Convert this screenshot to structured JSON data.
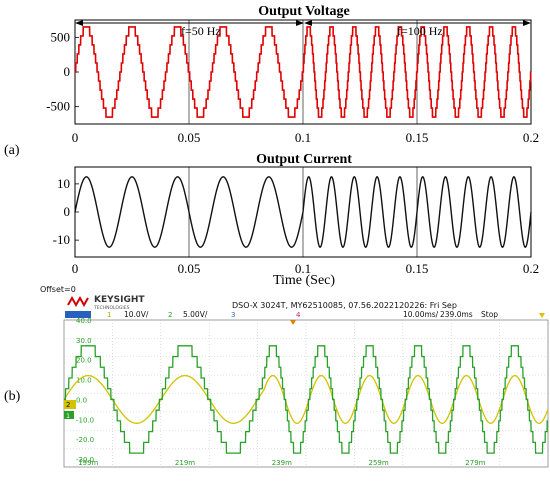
{
  "panel_labels": {
    "a": "(a)",
    "b": "(b)"
  },
  "chart_data": [
    {
      "type": "line",
      "title": "Output Voltage",
      "annotations": [
        "f=50 Hz",
        "f=100 Hz"
      ],
      "xlim": [
        0,
        0.2
      ],
      "ylim": [
        -750,
        750
      ],
      "x_ticks": [
        "0",
        "0.05",
        "0.1",
        "0.15",
        "0.2"
      ],
      "y_ticks": [
        "500",
        "0",
        "-500"
      ],
      "y_tick_values": [
        500,
        0,
        -500
      ],
      "x_tick_values": [
        0,
        0.05,
        0.1,
        0.15,
        0.2
      ],
      "grid": "vertical",
      "series": [
        {
          "color": "#e00000",
          "waveform": "stepped-sine",
          "segments": [
            {
              "x_start": 0,
              "x_end": 0.1,
              "frequency_hz": 50,
              "amplitude": 650
            },
            {
              "x_start": 0.1,
              "x_end": 0.2,
              "frequency_hz": 100,
              "amplitude": 650
            }
          ]
        }
      ]
    },
    {
      "type": "line",
      "title": "Output Current",
      "xlabel": "Time (Sec)",
      "xlim": [
        0,
        0.2
      ],
      "ylim": [
        -16,
        16
      ],
      "x_ticks": [
        "0",
        "0.05",
        "0.1",
        "0.15",
        "0.2"
      ],
      "y_ticks": [
        "10",
        "0",
        "-10"
      ],
      "y_tick_values": [
        10,
        0,
        -10
      ],
      "x_tick_values": [
        0,
        0.05,
        0.1,
        0.15,
        0.2
      ],
      "grid": "vertical",
      "series": [
        {
          "color": "#111111",
          "waveform": "sine",
          "segments": [
            {
              "x_start": 0,
              "x_end": 0.1,
              "frequency_hz": 50,
              "amplitude": 12.5
            },
            {
              "x_start": 0.1,
              "x_end": 0.2,
              "frequency_hz": 100,
              "amplitude": 12.5
            }
          ]
        }
      ]
    },
    {
      "type": "line",
      "title": "",
      "header": {
        "offset": "Offset=0",
        "brand": "KEYSIGHT",
        "brand_sub": "TECHNOLOGIES",
        "model_info": "DSO-X 3024T, MY62510085, 07.56.2022120226: Fri Sep",
        "ch1_num": "1",
        "ch1_scale": "10.0V/",
        "ch2_num": "2",
        "ch2_scale": "5.00V/",
        "ch3_num": "3",
        "ch4_num": "4",
        "timebase": "10.00ms/",
        "delay": "239.0ms",
        "status": "Stop"
      },
      "ch1_marker": "1",
      "ch2_marker": "2",
      "x_ticks": [
        "199m",
        "219m",
        "239m",
        "259m",
        "279m"
      ],
      "y_ticks": [
        "40.0",
        "30.0",
        "20.0",
        "10.0",
        "0.0",
        "-10.0",
        "-20.0",
        "-30.0"
      ],
      "y_tick_values": [
        40,
        30,
        20,
        10,
        0,
        -10,
        -20,
        -30
      ],
      "xlim": [
        194,
        294
      ],
      "ylim": [
        -34,
        40
      ],
      "grid": "on",
      "series": [
        {
          "color": "#2aa02a",
          "waveform": "stepped-sine",
          "segments": [
            {
              "x_start": 194,
              "x_end": 235.3,
              "frequency_hz": 50,
              "amplitude": 27
            },
            {
              "x_start": 235.3,
              "x_end": 294,
              "frequency_hz": 100,
              "amplitude": 27
            }
          ]
        },
        {
          "color": "#d2c200",
          "waveform": "sine",
          "segments": [
            {
              "x_start": 194,
              "x_end": 235.3,
              "frequency_hz": 50,
              "amplitude": 12
            },
            {
              "x_start": 235.3,
              "x_end": 294,
              "frequency_hz": 100,
              "amplitude": 12
            }
          ]
        }
      ]
    }
  ]
}
